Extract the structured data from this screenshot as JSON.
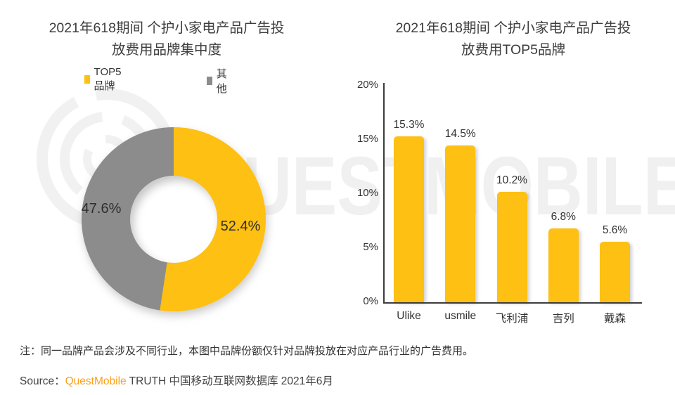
{
  "watermark": {
    "text": "UESTMOBILE"
  },
  "donut_chart": {
    "title_line1": "2021年618期间 个护小家电产品广告投",
    "title_line2": "放费用品牌集中度",
    "legend": [
      {
        "label": "TOP5品牌",
        "color": "#FDC013"
      },
      {
        "label": "其他",
        "color": "#8C8C8C"
      }
    ],
    "labels": {
      "top5": "52.4%",
      "other": "47.6%"
    }
  },
  "bar_chart": {
    "title_line1": "2021年618期间 个护小家电产品广告投",
    "title_line2": "放费用TOP5品牌"
  },
  "chart_data": [
    {
      "type": "pie",
      "subtype": "donut",
      "title": "2021年618期间 个护小家电产品广告投放费用品牌集中度",
      "labels": [
        "TOP5品牌",
        "其他"
      ],
      "values": [
        52.4,
        47.6
      ],
      "value_labels": [
        "52.4%",
        "47.6%"
      ],
      "colors": [
        "#FDC013",
        "#8C8C8C"
      ],
      "legend_position": "top",
      "start_angle": "12 o'clock, clockwise"
    },
    {
      "type": "bar",
      "title": "2021年618期间 个护小家电产品广告投放费用TOP5品牌",
      "categories": [
        "Ulike",
        "usmile",
        "飞利浦",
        "吉列",
        "戴森"
      ],
      "values": [
        15.3,
        14.5,
        10.2,
        6.8,
        5.6
      ],
      "value_labels": [
        "15.3%",
        "14.5%",
        "10.2%",
        "6.8%",
        "5.6%"
      ],
      "xlabel": "",
      "ylabel": "",
      "ylim": [
        0,
        20
      ],
      "y_ticks": [
        "0%",
        "5%",
        "10%",
        "15%",
        "20%"
      ],
      "bar_color": "#FDC013",
      "grid": false,
      "legend_position": "none"
    }
  ],
  "footer": {
    "note": "注：同一品牌产品会涉及不同行业，本图中品牌份额仅针对品牌投放在对应产品行业的广告费用。",
    "source_prefix": "Source：",
    "source_brand": "QuestMobile",
    "source_suffix": " TRUTH 中国移动互联网数据库 2021年6月",
    "brand_color": "#F9A11B"
  }
}
